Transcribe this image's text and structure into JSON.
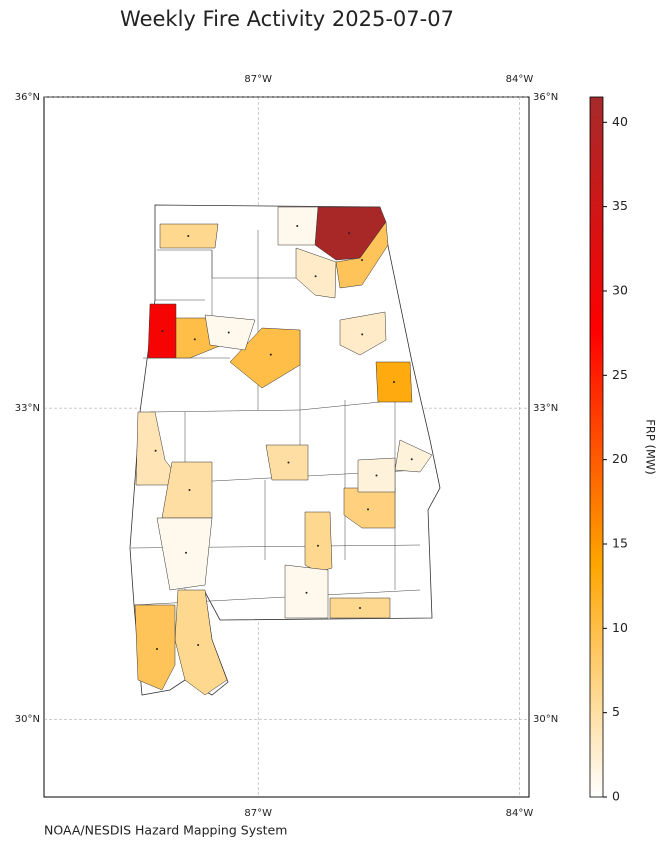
{
  "chart_data": {
    "type": "choropleth",
    "title": "Weekly Fire Activity 2025-07-07",
    "source": "NOAA/NESDIS Hazard Mapping System",
    "xlim": [
      -89.46,
      -83.89
    ],
    "ylim": [
      29.25,
      36
    ],
    "xticks": [
      {
        "value": -87,
        "label": "87°W"
      },
      {
        "value": -84,
        "label": "84°W"
      }
    ],
    "yticks": [
      {
        "value": 36,
        "label": "36°N"
      },
      {
        "value": 33,
        "label": "33°N"
      },
      {
        "value": 30,
        "label": "30°N"
      }
    ],
    "grid": true,
    "values": [
      41,
      9,
      29,
      10,
      10,
      13,
      6,
      6,
      9,
      4,
      5,
      7,
      6,
      5,
      6,
      3,
      3,
      2,
      2,
      1,
      1,
      1,
      1
    ],
    "colorbar_label": "FRP (MW)",
    "colorbar_lim": [
      0,
      41.5
    ],
    "colorbar_ticks": [
      0,
      5,
      10,
      15,
      20,
      25,
      30,
      35,
      40
    ],
    "colorbar_colors": [
      "#ffffff",
      "#ffa500",
      "#ff0000",
      "#a52a2a"
    ]
  }
}
